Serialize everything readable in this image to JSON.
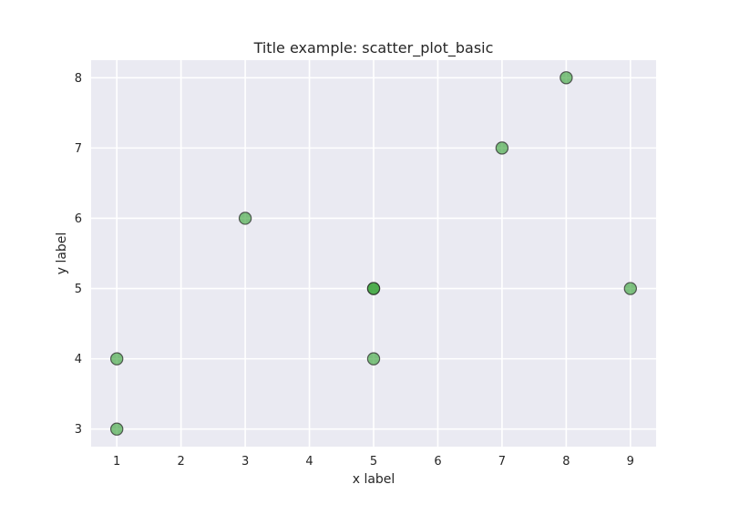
{
  "chart_data": {
    "type": "scatter",
    "title": "Title example: scatter_plot_basic",
    "xlabel": "x label",
    "ylabel": "y label",
    "xlim": [
      0.6,
      9.4
    ],
    "ylim": [
      2.75,
      8.25
    ],
    "xticks": [
      1,
      2,
      3,
      4,
      5,
      6,
      7,
      8,
      9
    ],
    "yticks": [
      3,
      4,
      5,
      6,
      7,
      8
    ],
    "grid": true,
    "series": [
      {
        "color": "#2e9e2e",
        "edgecolor": "#2b2b2b",
        "points": [
          {
            "x": 1,
            "y": 3
          },
          {
            "x": 1,
            "y": 4
          },
          {
            "x": 3,
            "y": 6
          },
          {
            "x": 5,
            "y": 4
          },
          {
            "x": 5,
            "y": 5
          },
          {
            "x": 5,
            "y": 5
          },
          {
            "x": 7,
            "y": 7
          },
          {
            "x": 8,
            "y": 8
          },
          {
            "x": 9,
            "y": 5
          }
        ]
      }
    ]
  },
  "style": {
    "axes_background": "#eaeaf2",
    "grid_color": "#ffffff"
  }
}
